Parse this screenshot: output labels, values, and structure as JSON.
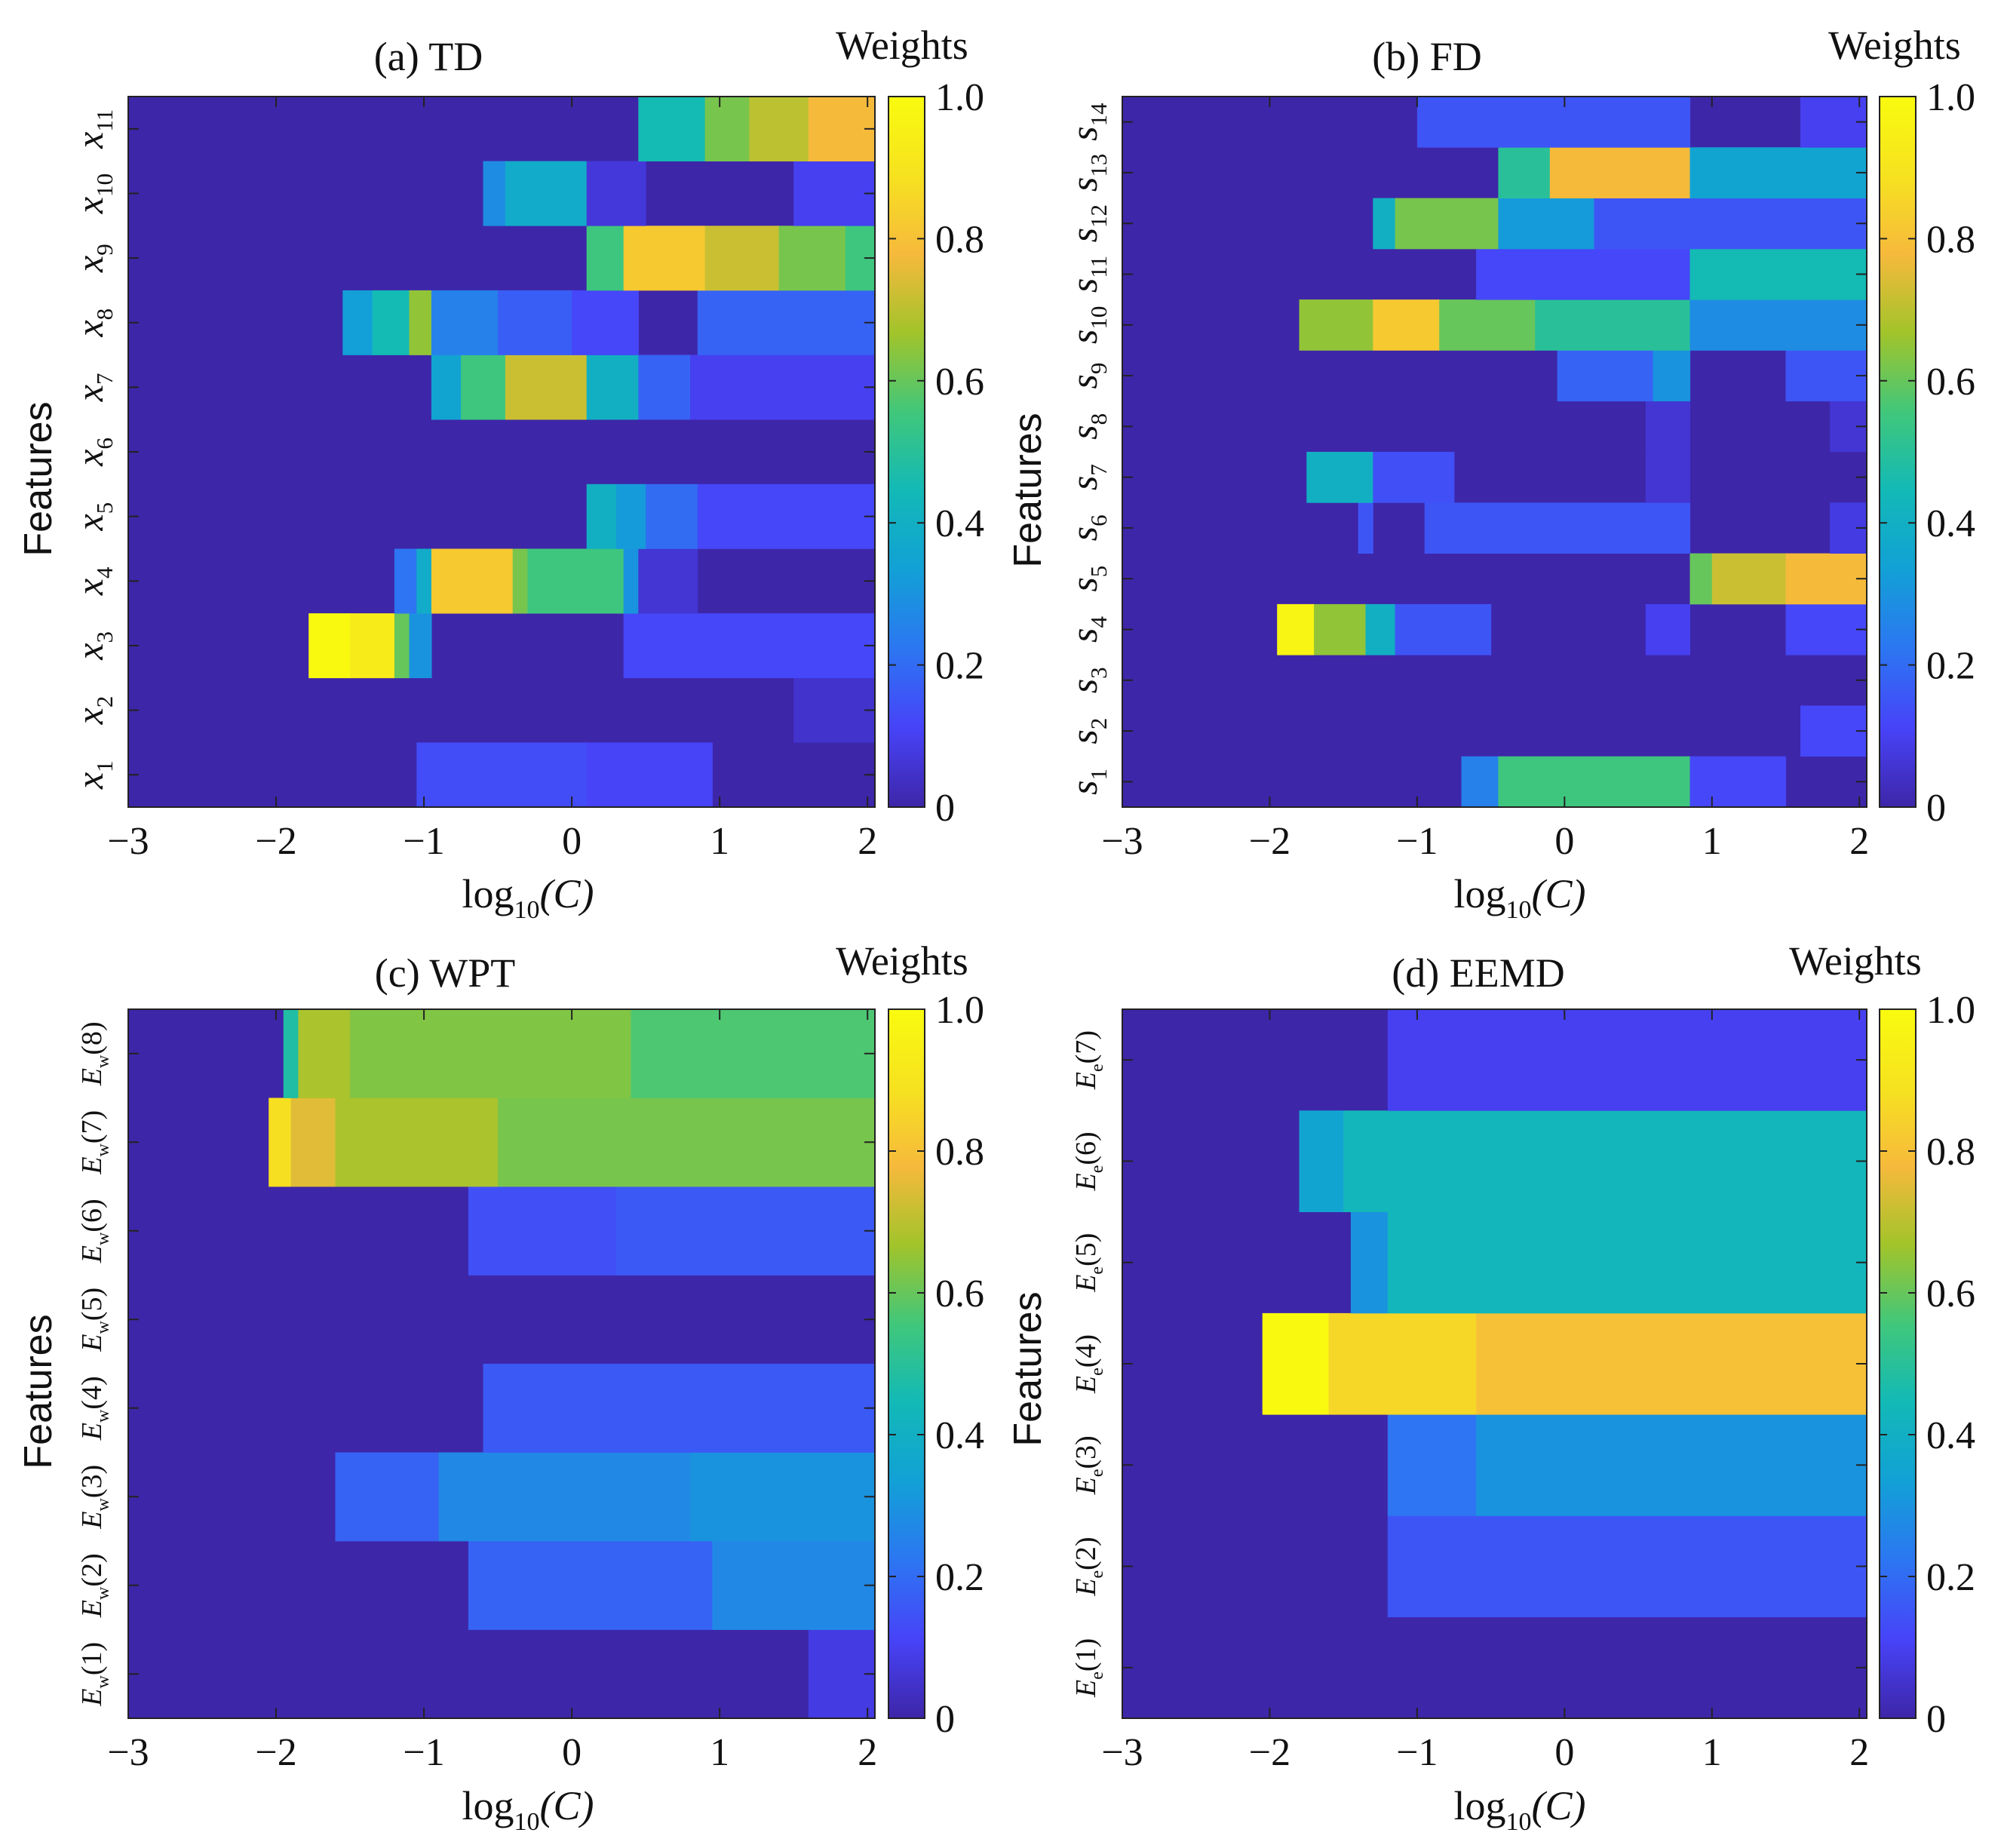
{
  "figure": {
    "ylabel": "Features",
    "xlabel_main": "log",
    "xlabel_sub": "10",
    "xlabel_var": "(C)",
    "colorbar_title": "Weights",
    "colorbar_ticks": [
      "0",
      "0.2",
      "0.4",
      "0.6",
      "0.8",
      "1.0"
    ],
    "colorbar_range": [
      0,
      1
    ],
    "colormap": [
      "#3e26a8",
      "#4743f8",
      "#2c76f2",
      "#12a0d6",
      "#12b9b7",
      "#40c77b",
      "#a1c42b",
      "#f6b93c",
      "#f6e21f",
      "#f9fb0e"
    ]
  },
  "chart_data": [
    {
      "type": "heatmap",
      "title": "(a) TD",
      "xlabel": "log10(C)",
      "ylabel": "Features",
      "x_range": [
        -3,
        2.05
      ],
      "x_ticks": [
        "−3",
        "−2",
        "−1",
        "0",
        "1",
        "2"
      ],
      "x_tick_values": [
        -3,
        -2,
        -1,
        0,
        1,
        2
      ],
      "features": [
        {
          "base": "x",
          "sub": "1"
        },
        {
          "base": "x",
          "sub": "2"
        },
        {
          "base": "x",
          "sub": "3"
        },
        {
          "base": "x",
          "sub": "4"
        },
        {
          "base": "x",
          "sub": "5"
        },
        {
          "base": "x",
          "sub": "6"
        },
        {
          "base": "x",
          "sub": "7"
        },
        {
          "base": "x",
          "sub": "8"
        },
        {
          "base": "x",
          "sub": "9"
        },
        {
          "base": "x",
          "sub": "10"
        },
        {
          "base": "x",
          "sub": "11"
        }
      ],
      "segments": [
        [
          [
            -1.05,
            0.1,
            0.13
          ],
          [
            0.1,
            0.95,
            0.11
          ]
        ],
        [
          [
            1.5,
            2.05,
            0.05
          ]
        ],
        [
          [
            -1.78,
            -1.5,
            0.99
          ],
          [
            -1.5,
            -1.2,
            0.93
          ],
          [
            -1.2,
            -1.1,
            0.6
          ],
          [
            -1.1,
            -0.95,
            0.3
          ],
          [
            0.35,
            2.05,
            0.12
          ]
        ],
        [
          [
            -1.2,
            -1.05,
            0.22
          ],
          [
            -1.05,
            -0.95,
            0.38
          ],
          [
            -0.95,
            -0.4,
            0.82
          ],
          [
            -0.4,
            -0.3,
            0.62
          ],
          [
            -0.3,
            0.35,
            0.55
          ],
          [
            0.35,
            0.45,
            0.3
          ],
          [
            0.45,
            0.85,
            0.06
          ]
        ],
        [
          [
            0.1,
            0.3,
            0.4
          ],
          [
            0.3,
            0.5,
            0.32
          ],
          [
            0.5,
            0.85,
            0.2
          ],
          [
            0.85,
            2.05,
            0.12
          ]
        ],
        [],
        [
          [
            -0.95,
            -0.75,
            0.35
          ],
          [
            -0.75,
            -0.45,
            0.55
          ],
          [
            -0.45,
            0.1,
            0.72
          ],
          [
            0.1,
            0.45,
            0.4
          ],
          [
            0.45,
            0.8,
            0.18
          ],
          [
            0.8,
            2.05,
            0.1
          ]
        ],
        [
          [
            -1.55,
            -1.35,
            0.33
          ],
          [
            -1.35,
            -1.1,
            0.45
          ],
          [
            -1.1,
            -0.95,
            0.65
          ],
          [
            -0.95,
            -0.5,
            0.25
          ],
          [
            -0.5,
            0.0,
            0.17
          ],
          [
            0.0,
            0.45,
            0.12
          ],
          [
            0.85,
            2.05,
            0.18
          ]
        ],
        [
          [
            0.1,
            0.35,
            0.55
          ],
          [
            0.35,
            0.9,
            0.82
          ],
          [
            0.9,
            1.4,
            0.72
          ],
          [
            1.4,
            1.85,
            0.62
          ],
          [
            1.85,
            2.05,
            0.55
          ]
        ],
        [
          [
            -0.6,
            -0.45,
            0.28
          ],
          [
            -0.45,
            0.1,
            0.38
          ],
          [
            0.1,
            0.5,
            0.07
          ],
          [
            1.5,
            2.05,
            0.1
          ]
        ],
        [
          [
            0.45,
            0.9,
            0.45
          ],
          [
            0.9,
            1.2,
            0.62
          ],
          [
            1.2,
            1.6,
            0.7
          ],
          [
            1.6,
            2.05,
            0.78
          ]
        ]
      ]
    },
    {
      "type": "heatmap",
      "title": "(b) FD",
      "xlabel": "log10(C)",
      "ylabel": "Features",
      "x_range": [
        -3,
        2.05
      ],
      "x_ticks": [
        "−3",
        "−2",
        "−1",
        "0",
        "1",
        "2"
      ],
      "x_tick_values": [
        -3,
        -2,
        -1,
        0,
        1,
        2
      ],
      "features": [
        {
          "base": "s",
          "sub": "1"
        },
        {
          "base": "s",
          "sub": "2"
        },
        {
          "base": "s",
          "sub": "3"
        },
        {
          "base": "s",
          "sub": "4"
        },
        {
          "base": "s",
          "sub": "5"
        },
        {
          "base": "s",
          "sub": "6"
        },
        {
          "base": "s",
          "sub": "7"
        },
        {
          "base": "s",
          "sub": "8"
        },
        {
          "base": "s",
          "sub": "9"
        },
        {
          "base": "s",
          "sub": "10"
        },
        {
          "base": "s",
          "sub": "11"
        },
        {
          "base": "s",
          "sub": "12"
        },
        {
          "base": "s",
          "sub": "13"
        },
        {
          "base": "s",
          "sub": "14"
        }
      ],
      "segments": [
        [
          [
            -0.7,
            -0.45,
            0.25
          ],
          [
            -0.45,
            0.85,
            0.55
          ],
          [
            0.85,
            1.5,
            0.12
          ]
        ],
        [
          [
            1.6,
            2.05,
            0.12
          ]
        ],
        [],
        [
          [
            -1.95,
            -1.7,
            0.97
          ],
          [
            -1.7,
            -1.35,
            0.65
          ],
          [
            -1.35,
            -1.15,
            0.4
          ],
          [
            -1.15,
            -0.5,
            0.15
          ],
          [
            0.55,
            0.85,
            0.1
          ],
          [
            1.5,
            2.05,
            0.12
          ]
        ],
        [
          [
            0.85,
            1.0,
            0.6
          ],
          [
            1.0,
            1.5,
            0.72
          ],
          [
            1.5,
            2.05,
            0.78
          ]
        ],
        [
          [
            -1.4,
            -1.3,
            0.15
          ],
          [
            -0.95,
            0.85,
            0.15
          ],
          [
            1.8,
            2.05,
            0.08
          ]
        ],
        [
          [
            -1.75,
            -1.3,
            0.4
          ],
          [
            -1.3,
            -0.75,
            0.14
          ],
          [
            0.55,
            0.85,
            0.06
          ]
        ],
        [
          [
            0.55,
            0.85,
            0.06
          ],
          [
            1.8,
            2.05,
            0.06
          ]
        ],
        [
          [
            -0.05,
            0.6,
            0.18
          ],
          [
            0.6,
            0.85,
            0.3
          ],
          [
            1.5,
            2.05,
            0.15
          ]
        ],
        [
          [
            -1.8,
            -1.3,
            0.65
          ],
          [
            -1.3,
            -0.85,
            0.82
          ],
          [
            -0.85,
            -0.2,
            0.6
          ],
          [
            -0.2,
            0.85,
            0.5
          ],
          [
            0.85,
            2.05,
            0.28
          ]
        ],
        [
          [
            -0.6,
            0.85,
            0.12
          ],
          [
            0.85,
            2.05,
            0.45
          ]
        ],
        [
          [
            -1.3,
            -1.15,
            0.4
          ],
          [
            -1.15,
            -0.45,
            0.62
          ],
          [
            -0.45,
            0.2,
            0.32
          ],
          [
            0.2,
            2.05,
            0.15
          ]
        ],
        [
          [
            -0.45,
            -0.1,
            0.5
          ],
          [
            -0.1,
            0.85,
            0.78
          ],
          [
            0.85,
            2.05,
            0.35
          ]
        ],
        [
          [
            -1.0,
            0.85,
            0.15
          ],
          [
            1.6,
            2.05,
            0.1
          ]
        ]
      ]
    },
    {
      "type": "heatmap",
      "title": "(c) WPT",
      "xlabel": "log10(C)",
      "ylabel": "Features",
      "x_range": [
        -3,
        2.05
      ],
      "x_ticks": [
        "−3",
        "−2",
        "−1",
        "0",
        "1",
        "2"
      ],
      "x_tick_values": [
        -3,
        -2,
        -1,
        0,
        1,
        2
      ],
      "features": [
        {
          "base": "E",
          "sub": "w",
          "arg": "(1)"
        },
        {
          "base": "E",
          "sub": "w",
          "arg": "(2)"
        },
        {
          "base": "E",
          "sub": "w",
          "arg": "(3)"
        },
        {
          "base": "E",
          "sub": "w",
          "arg": "(4)"
        },
        {
          "base": "E",
          "sub": "w",
          "arg": "(5)"
        },
        {
          "base": "E",
          "sub": "w",
          "arg": "(6)"
        },
        {
          "base": "E",
          "sub": "w",
          "arg": "(7)"
        },
        {
          "base": "E",
          "sub": "w",
          "arg": "(8)"
        }
      ],
      "segments": [
        [
          [
            1.6,
            2.05,
            0.08
          ]
        ],
        [
          [
            -0.7,
            0.95,
            0.18
          ],
          [
            0.95,
            2.05,
            0.27
          ]
        ],
        [
          [
            -1.6,
            -0.9,
            0.18
          ],
          [
            -0.9,
            0.8,
            0.27
          ],
          [
            0.8,
            2.05,
            0.3
          ]
        ],
        [
          [
            -0.6,
            2.05,
            0.16
          ]
        ],
        [],
        [
          [
            -0.7,
            0.3,
            0.14
          ],
          [
            0.3,
            2.05,
            0.16
          ]
        ],
        [
          [
            -2.05,
            -1.9,
            0.88
          ],
          [
            -1.9,
            -1.6,
            0.75
          ],
          [
            -1.6,
            -0.5,
            0.68
          ],
          [
            -0.5,
            2.05,
            0.62
          ]
        ],
        [
          [
            -1.95,
            -1.85,
            0.48
          ],
          [
            -1.85,
            -1.5,
            0.68
          ],
          [
            -1.5,
            0.4,
            0.63
          ],
          [
            0.4,
            2.05,
            0.57
          ]
        ]
      ]
    },
    {
      "type": "heatmap",
      "title": "(d) EEMD",
      "xlabel": "log10(C)",
      "ylabel": "Features",
      "x_range": [
        -3,
        2.05
      ],
      "x_ticks": [
        "−3",
        "−2",
        "−1",
        "0",
        "1",
        "2"
      ],
      "x_tick_values": [
        -3,
        -2,
        -1,
        0,
        1,
        2
      ],
      "features": [
        {
          "base": "E",
          "sub": "e",
          "arg": "(1)"
        },
        {
          "base": "E",
          "sub": "e",
          "arg": "(2)"
        },
        {
          "base": "E",
          "sub": "e",
          "arg": "(3)"
        },
        {
          "base": "E",
          "sub": "e",
          "arg": "(4)"
        },
        {
          "base": "E",
          "sub": "e",
          "arg": "(5)"
        },
        {
          "base": "E",
          "sub": "e",
          "arg": "(6)"
        },
        {
          "base": "E",
          "sub": "e",
          "arg": "(7)"
        }
      ],
      "segments": [
        [],
        [
          [
            -1.2,
            2.05,
            0.15
          ]
        ],
        [
          [
            -1.2,
            -0.6,
            0.22
          ],
          [
            -0.6,
            2.05,
            0.3
          ]
        ],
        [
          [
            -2.05,
            -1.6,
            0.99
          ],
          [
            -1.6,
            -0.6,
            0.86
          ],
          [
            -0.6,
            2.05,
            0.8
          ]
        ],
        [
          [
            -1.45,
            -1.2,
            0.3
          ],
          [
            -1.2,
            2.05,
            0.43
          ]
        ],
        [
          [
            -1.8,
            -1.5,
            0.35
          ],
          [
            -1.5,
            2.05,
            0.43
          ]
        ],
        [
          [
            -1.2,
            2.05,
            0.1
          ]
        ]
      ]
    }
  ]
}
